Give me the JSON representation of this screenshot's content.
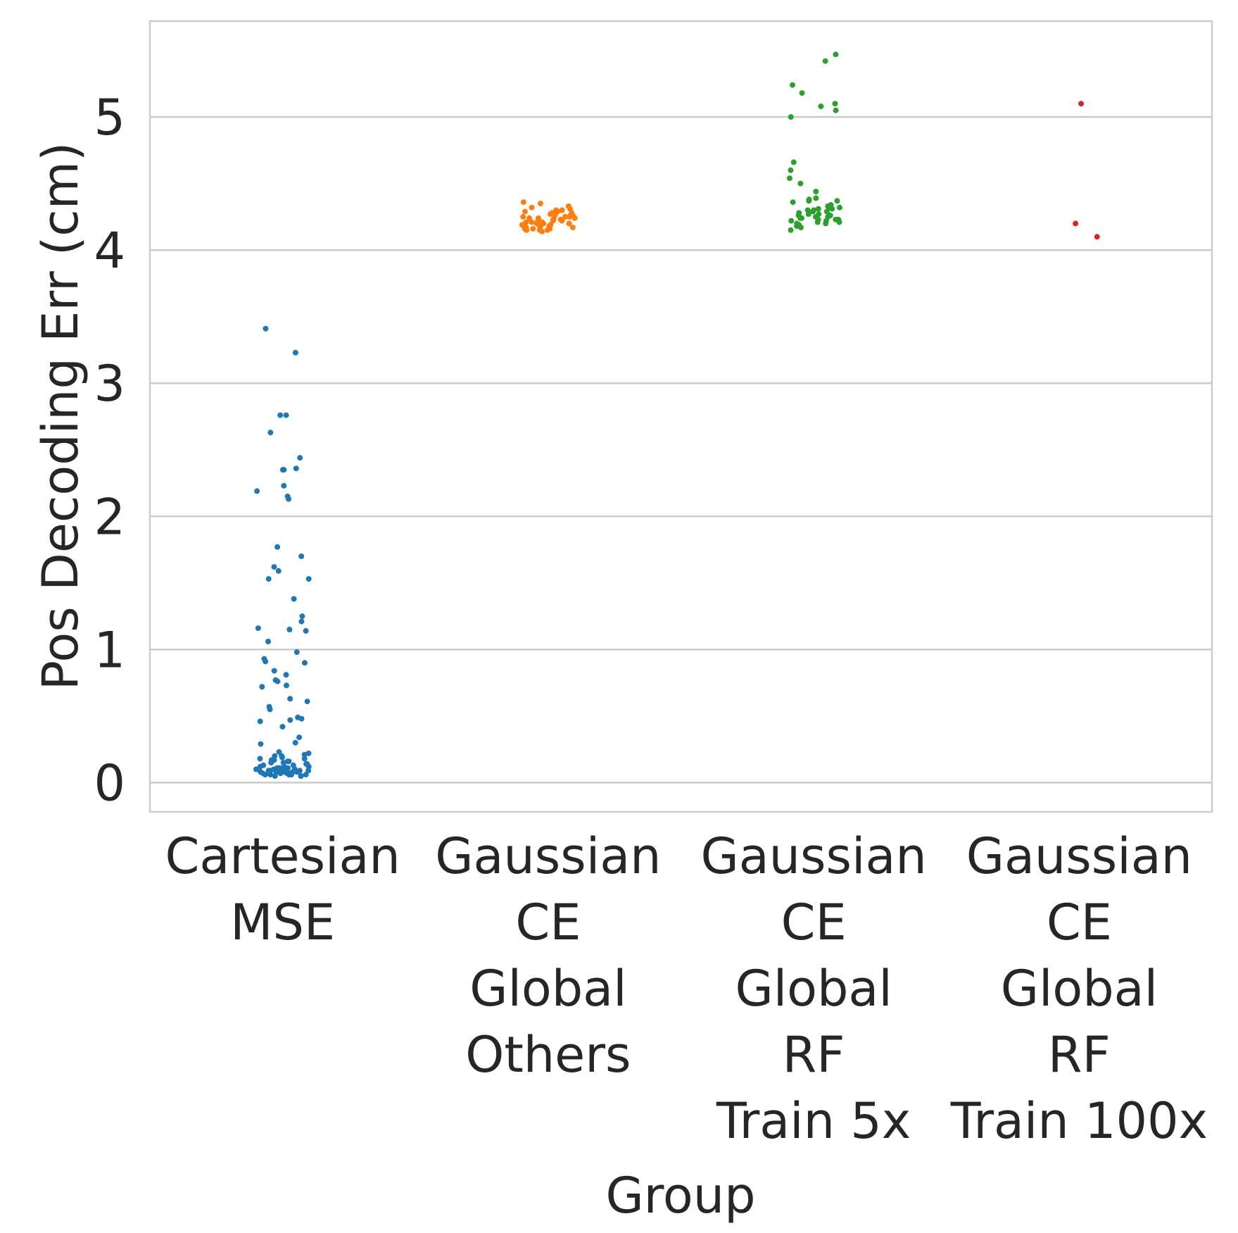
{
  "chart_data": {
    "type": "scatter",
    "subtype": "strip",
    "xlabel": "Group",
    "ylabel": "Pos Decoding Err (cm)",
    "ylim": [
      -0.22,
      5.72
    ],
    "yticks": [
      0,
      1,
      2,
      3,
      4,
      5
    ],
    "grid": "horizontal",
    "legend": "none",
    "categories": [
      [
        "Cartesian",
        "MSE"
      ],
      [
        "Gaussian",
        "CE",
        "Global",
        "Others"
      ],
      [
        "Gaussian",
        "CE",
        "Global",
        "RF",
        "Train 5x"
      ],
      [
        "Gaussian",
        "CE",
        "Global",
        "RF",
        "Train 100x"
      ]
    ],
    "series": [
      {
        "color": "#1f77b4",
        "values": [
          3.41,
          3.23,
          2.76,
          2.76,
          2.63,
          2.44,
          2.36,
          2.35,
          2.35,
          2.23,
          2.19,
          2.15,
          2.13,
          1.77,
          1.7,
          1.62,
          1.59,
          1.53,
          1.53,
          1.38,
          1.25,
          1.21,
          1.16,
          1.15,
          1.14,
          1.06,
          0.98,
          0.93,
          0.9,
          0.91,
          0.84,
          0.81,
          0.77,
          0.76,
          0.73,
          0.72,
          0.63,
          0.61,
          0.57,
          0.55,
          0.49,
          0.48,
          0.47,
          0.46,
          0.42,
          0.34,
          0.3,
          0.29,
          0.23,
          0.22,
          0.21,
          0.2,
          0.2,
          0.19,
          0.18,
          0.18,
          0.17,
          0.17,
          0.16,
          0.16,
          0.15,
          0.15,
          0.14,
          0.14,
          0.13,
          0.13,
          0.12,
          0.12,
          0.12,
          0.11,
          0.11,
          0.11,
          0.1,
          0.1,
          0.1,
          0.1,
          0.09,
          0.09,
          0.09,
          0.09,
          0.08,
          0.08,
          0.08,
          0.08,
          0.08,
          0.07,
          0.07,
          0.07,
          0.07,
          0.07,
          0.06,
          0.06,
          0.06,
          0.06,
          0.06,
          0.05,
          0.05,
          0.05
        ]
      },
      {
        "color": "#ff7f0e",
        "values": [
          4.36,
          4.35,
          4.33,
          4.32,
          4.31,
          4.3,
          4.3,
          4.29,
          4.29,
          4.28,
          4.28,
          4.27,
          4.27,
          4.26,
          4.26,
          4.26,
          4.25,
          4.25,
          4.25,
          4.24,
          4.24,
          4.24,
          4.23,
          4.23,
          4.23,
          4.22,
          4.22,
          4.22,
          4.21,
          4.21,
          4.21,
          4.2,
          4.2,
          4.2,
          4.19,
          4.19,
          4.19,
          4.18,
          4.18,
          4.18,
          4.17,
          4.17,
          4.17,
          4.16,
          4.16,
          4.16,
          4.15,
          4.15,
          4.15,
          4.14
        ]
      },
      {
        "color": "#2ca02c",
        "values": [
          5.47,
          5.42,
          5.24,
          5.18,
          5.1,
          5.08,
          5.05,
          5.0,
          4.66,
          4.6,
          4.54,
          4.5,
          4.44,
          4.39,
          4.38,
          4.37,
          4.37,
          4.36,
          4.34,
          4.33,
          4.32,
          4.32,
          4.31,
          4.31,
          4.3,
          4.3,
          4.29,
          4.29,
          4.28,
          4.27,
          4.27,
          4.26,
          4.26,
          4.25,
          4.25,
          4.24,
          4.24,
          4.23,
          4.23,
          4.23,
          4.22,
          4.22,
          4.21,
          4.21,
          4.2,
          4.2,
          4.19,
          4.18,
          4.17,
          4.15
        ]
      },
      {
        "color": "#d62728",
        "values": [
          5.1,
          4.2,
          4.1
        ]
      }
    ]
  }
}
